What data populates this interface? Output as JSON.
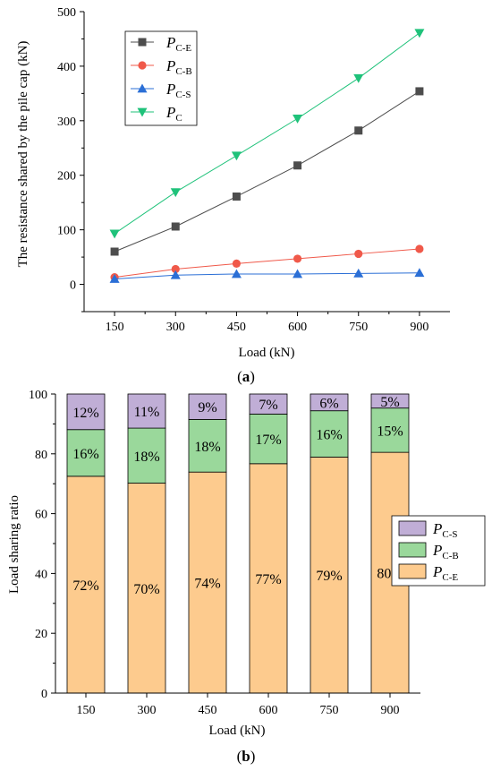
{
  "chart_data": [
    {
      "panel_label": "a",
      "type": "line",
      "xlabel": "Load (kN)",
      "ylabel": "The resistance shared by the pile cap (kN)",
      "x": [
        150,
        300,
        450,
        600,
        750,
        900
      ],
      "xlim": [
        75,
        975
      ],
      "ylim": [
        -50,
        500
      ],
      "yticks": [
        0,
        100,
        200,
        300,
        400,
        500
      ],
      "grid": false,
      "legend_position": "top-left",
      "series": [
        {
          "name": "C-E",
          "italic_prefix": "P",
          "marker": "square",
          "color": "#4d4d4d",
          "values": [
            60,
            106,
            161,
            218,
            282,
            354
          ]
        },
        {
          "name": "C-B",
          "italic_prefix": "P",
          "marker": "circle",
          "color": "#f0594a",
          "values": [
            13,
            28,
            38,
            47,
            56,
            65
          ]
        },
        {
          "name": "C-S",
          "italic_prefix": "P",
          "marker": "triangle-up",
          "color": "#2b6fd6",
          "values": [
            10,
            17,
            19,
            19,
            20,
            21
          ]
        },
        {
          "name": "C",
          "italic_prefix": "P",
          "marker": "triangle-down",
          "color": "#1fc27a",
          "values": [
            93,
            169,
            236,
            304,
            378,
            461
          ]
        }
      ]
    },
    {
      "panel_label": "b",
      "type": "bar",
      "stacked": true,
      "xlabel": "Load (kN)",
      "ylabel": "Load sharing ratio",
      "categories": [
        "150",
        "300",
        "450",
        "600",
        "750",
        "900"
      ],
      "ylim": [
        0,
        100
      ],
      "yticks": [
        0,
        20,
        40,
        60,
        80,
        100
      ],
      "grid": false,
      "legend_position": "right",
      "series": [
        {
          "name": "C-E",
          "italic_prefix": "P",
          "color": "#fdcb8e",
          "values": [
            72.5,
            70.2,
            73.9,
            76.7,
            78.9,
            80.5
          ],
          "labels": [
            "72%",
            "70%",
            "74%",
            "77%",
            "79%",
            "80%"
          ]
        },
        {
          "name": "C-B",
          "italic_prefix": "P",
          "color": "#9ad89b",
          "values": [
            15.6,
            18.4,
            17.6,
            16.6,
            15.5,
            14.8
          ],
          "labels": [
            "16%",
            "18%",
            "18%",
            "17%",
            "16%",
            "15%"
          ]
        },
        {
          "name": "C-S",
          "italic_prefix": "P",
          "color": "#c0aed6",
          "values": [
            11.9,
            11.4,
            8.5,
            6.7,
            5.6,
            4.7
          ],
          "labels": [
            "12%",
            "11%",
            "9%",
            "7%",
            "6%",
            "5%"
          ]
        }
      ]
    }
  ]
}
